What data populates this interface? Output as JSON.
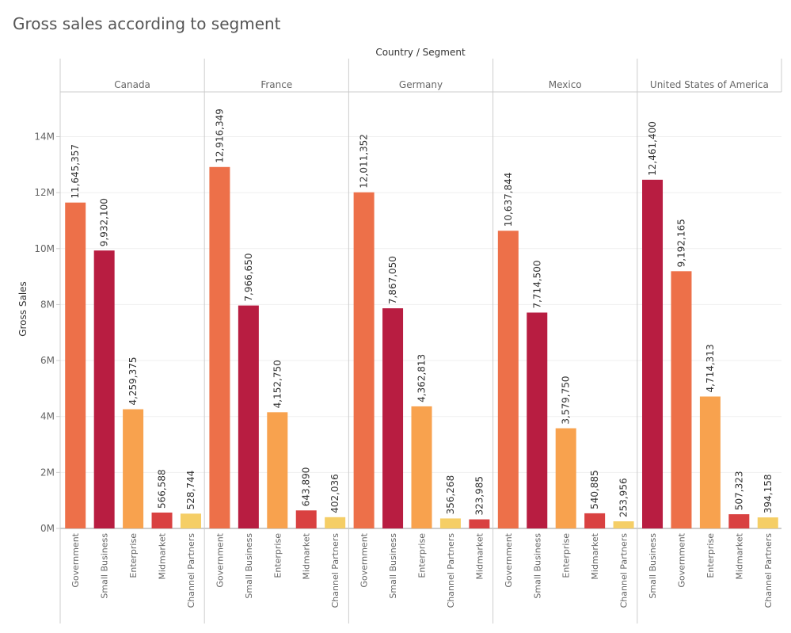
{
  "title": "Gross sales according to segment",
  "chart_data": {
    "type": "bar",
    "title": "Gross sales according to segment",
    "header_label": "Country / Segment",
    "ylabel": "Gross Sales",
    "ylim": [
      0,
      15600000
    ],
    "yticks": [
      0,
      2000000,
      4000000,
      6000000,
      8000000,
      10000000,
      12000000,
      14000000
    ],
    "ytick_labels": [
      "0M",
      "2M",
      "4M",
      "6M",
      "8M",
      "10M",
      "12M",
      "14M"
    ],
    "grid": true,
    "colors": {
      "Government": "#ED7049",
      "Small Business": "#B81D41",
      "Enterprise": "#F8A24E",
      "Midmarket": "#D94141",
      "Channel Partners": "#F5CE66"
    },
    "panels": [
      {
        "country": "Canada",
        "bars": [
          {
            "segment": "Government",
            "value": 11645357,
            "label": "11,645,357"
          },
          {
            "segment": "Small Business",
            "value": 9932100,
            "label": "9,932,100"
          },
          {
            "segment": "Enterprise",
            "value": 4259375,
            "label": "4,259,375"
          },
          {
            "segment": "Midmarket",
            "value": 566588,
            "label": "566,588"
          },
          {
            "segment": "Channel Partners",
            "value": 528744,
            "label": "528,744"
          }
        ]
      },
      {
        "country": "France",
        "bars": [
          {
            "segment": "Government",
            "value": 12916349,
            "label": "12,916,349"
          },
          {
            "segment": "Small Business",
            "value": 7966650,
            "label": "7,966,650"
          },
          {
            "segment": "Enterprise",
            "value": 4152750,
            "label": "4,152,750"
          },
          {
            "segment": "Midmarket",
            "value": 643890,
            "label": "643,890"
          },
          {
            "segment": "Channel Partners",
            "value": 402036,
            "label": "402,036"
          }
        ]
      },
      {
        "country": "Germany",
        "bars": [
          {
            "segment": "Government",
            "value": 12011352,
            "label": "12,011,352"
          },
          {
            "segment": "Small Business",
            "value": 7867050,
            "label": "7,867,050"
          },
          {
            "segment": "Enterprise",
            "value": 4362813,
            "label": "4,362,813"
          },
          {
            "segment": "Channel Partners",
            "value": 356268,
            "label": "356,268"
          },
          {
            "segment": "Midmarket",
            "value": 323985,
            "label": "323,985"
          }
        ]
      },
      {
        "country": "Mexico",
        "bars": [
          {
            "segment": "Government",
            "value": 10637844,
            "label": "10,637,844"
          },
          {
            "segment": "Small Business",
            "value": 7714500,
            "label": "7,714,500"
          },
          {
            "segment": "Enterprise",
            "value": 3579750,
            "label": "3,579,750"
          },
          {
            "segment": "Midmarket",
            "value": 540885,
            "label": "540,885"
          },
          {
            "segment": "Channel Partners",
            "value": 253956,
            "label": "253,956"
          }
        ]
      },
      {
        "country": "United States of America",
        "bars": [
          {
            "segment": "Small Business",
            "value": 12461400,
            "label": "12,461,400"
          },
          {
            "segment": "Government",
            "value": 9192165,
            "label": "9,192,165"
          },
          {
            "segment": "Enterprise",
            "value": 4714313,
            "label": "4,714,313"
          },
          {
            "segment": "Midmarket",
            "value": 507323,
            "label": "507,323"
          },
          {
            "segment": "Channel Partners",
            "value": 394158,
            "label": "394,158"
          }
        ]
      }
    ]
  }
}
